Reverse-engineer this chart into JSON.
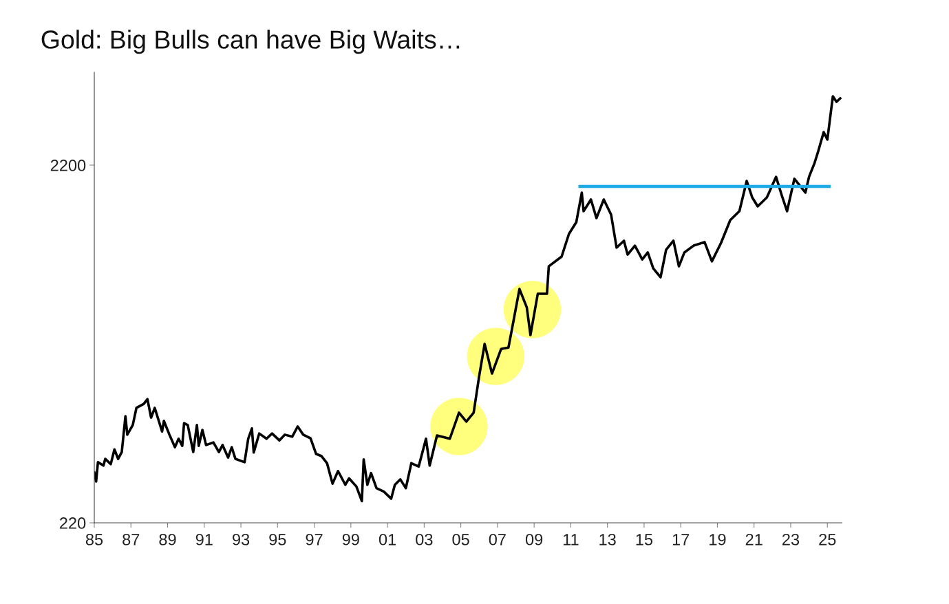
{
  "chart_data": {
    "type": "line",
    "title": "Gold: Big Bulls can have Big Waits…",
    "log": "y",
    "grid": false,
    "legend": false,
    "xlim": [
      1985,
      2025.8
    ],
    "xticks": [
      {
        "value": 1985,
        "label": "85"
      },
      {
        "value": 1987,
        "label": "87"
      },
      {
        "value": 1989,
        "label": "89"
      },
      {
        "value": 1991,
        "label": "91"
      },
      {
        "value": 1993,
        "label": "93"
      },
      {
        "value": 1995,
        "label": "95"
      },
      {
        "value": 1997,
        "label": "97"
      },
      {
        "value": 1999,
        "label": "99"
      },
      {
        "value": 2001,
        "label": "01"
      },
      {
        "value": 2003,
        "label": "03"
      },
      {
        "value": 2005,
        "label": "05"
      },
      {
        "value": 2007,
        "label": "07"
      },
      {
        "value": 2009,
        "label": "09"
      },
      {
        "value": 2011,
        "label": "11"
      },
      {
        "value": 2013,
        "label": "13"
      },
      {
        "value": 2015,
        "label": "15"
      },
      {
        "value": 2017,
        "label": "17"
      },
      {
        "value": 2019,
        "label": "19"
      },
      {
        "value": 2021,
        "label": "21"
      },
      {
        "value": 2023,
        "label": "23"
      },
      {
        "value": 2025,
        "label": "25"
      }
    ],
    "ylim": [
      220,
      4000
    ],
    "yticks": [
      220,
      2200
    ],
    "series": [
      {
        "type": "scatter",
        "color": "#ffff66",
        "marker": "circle",
        "x": [
          2004.9,
          2006.9,
          2008.9
        ],
        "values": [
          409,
          642,
          868
        ]
      },
      {
        "color": "#000000",
        "line_style": "solid",
        "marker": "none",
        "x": [
          1985.0,
          1985.1,
          1985.2,
          1985.5,
          1985.6,
          1985.9,
          1986.1,
          1986.3,
          1986.5,
          1986.7,
          1986.8,
          1987.1,
          1987.3,
          1987.7,
          1987.9,
          1988.1,
          1988.3,
          1988.7,
          1988.8,
          1989.1,
          1989.4,
          1989.6,
          1989.8,
          1989.9,
          1990.1,
          1990.4,
          1990.6,
          1990.7,
          1990.9,
          1991.1,
          1991.5,
          1991.8,
          1992.0,
          1992.3,
          1992.5,
          1992.7,
          1993.2,
          1993.4,
          1993.6,
          1993.7,
          1994.0,
          1994.4,
          1994.7,
          1995.1,
          1995.4,
          1995.8,
          1996.1,
          1996.4,
          1996.8,
          1997.1,
          1997.4,
          1997.7,
          1998.0,
          1998.3,
          1998.7,
          1998.9,
          1999.3,
          1999.6,
          1999.7,
          1999.9,
          2000.1,
          2000.4,
          2000.8,
          2001.2,
          2001.4,
          2001.7,
          2002.0,
          2002.3,
          2002.7,
          2003.1,
          2003.3,
          2003.7,
          2004.4,
          2004.9,
          2005.3,
          2005.7,
          2006.0,
          2006.3,
          2006.7,
          2007.2,
          2007.6,
          2007.9,
          2008.2,
          2008.6,
          2008.8,
          2009.2,
          2009.7,
          2009.8,
          2010.5,
          2010.9,
          2011.3,
          2011.6,
          2011.7,
          2012.1,
          2012.4,
          2012.8,
          2013.2,
          2013.5,
          2013.9,
          2014.1,
          2014.5,
          2014.9,
          2015.2,
          2015.5,
          2015.9,
          2016.2,
          2016.6,
          2016.9,
          2017.2,
          2017.7,
          2018.3,
          2018.7,
          2019.2,
          2019.7,
          2020.2,
          2020.6,
          2020.9,
          2021.2,
          2021.7,
          2022.2,
          2022.5,
          2022.8,
          2023.2,
          2023.8,
          2024.0,
          2024.3,
          2024.5,
          2024.8,
          2025.0,
          2025.3,
          2025.5,
          2025.7
        ],
        "values": [
          304,
          287,
          325,
          318,
          332,
          321,
          353,
          332,
          347,
          437,
          388,
          413,
          461,
          473,
          488,
          433,
          461,
          396,
          424,
          388,
          358,
          378,
          361,
          418,
          413,
          347,
          413,
          361,
          400,
          363,
          369,
          347,
          363,
          335,
          358,
          332,
          325,
          378,
          404,
          346,
          391,
          378,
          391,
          374,
          388,
          383,
          409,
          388,
          379,
          343,
          338,
          323,
          283,
          307,
          281,
          293,
          278,
          253,
          331,
          281,
          303,
          275,
          269,
          257,
          281,
          291,
          275,
          323,
          316,
          378,
          318,
          386,
          378,
          447,
          422,
          447,
          565,
          696,
          575,
          674,
          680,
          820,
          991,
          880,
          737,
          961,
          961,
          1147,
          1221,
          1413,
          1523,
          1843,
          1635,
          1763,
          1564,
          1763,
          1599,
          1293,
          1352,
          1237,
          1310,
          1199,
          1254,
          1132,
          1069,
          1276,
          1352,
          1147,
          1254,
          1310,
          1340,
          1184,
          1334,
          1544,
          1635,
          1987,
          1787,
          1687,
          1787,
          2040,
          1819,
          1635,
          2014,
          1843,
          2040,
          2229,
          2404,
          2721,
          2592,
          3426,
          3306,
          3380
        ]
      },
      {
        "color": "#1eaae7",
        "line_style": "solid",
        "marker": "none",
        "x": [
          2011.5,
          2025.1
        ],
        "values": [
          1918,
          1918
        ]
      }
    ]
  }
}
